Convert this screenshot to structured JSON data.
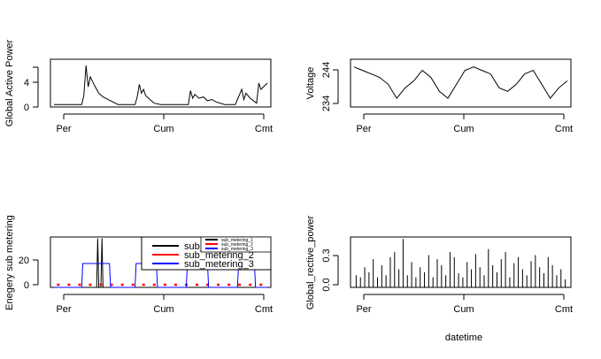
{
  "chart_data": [
    {
      "type": "line",
      "panel": "top-left",
      "title": "",
      "xlabel": "",
      "ylabel": "Global Active Power",
      "ylim": [
        0,
        7.6
      ],
      "yticks": [
        "0",
        "4"
      ],
      "xticks": [
        "Per",
        "Cum",
        "Cmt"
      ],
      "series": [
        {
          "color": "#000000",
          "x": [
            0,
            0.13,
            0.14,
            0.15,
            0.16,
            0.17,
            0.19,
            0.21,
            0.23,
            0.3,
            0.38,
            0.39,
            0.4,
            0.41,
            0.42,
            0.43,
            0.45,
            0.47,
            0.5,
            0.63,
            0.64,
            0.65,
            0.66,
            0.68,
            0.7,
            0.72,
            0.74,
            0.76,
            0.8,
            0.85,
            0.88,
            0.89,
            0.9,
            0.92,
            0.95,
            0.96,
            0.97,
            1.0
          ],
          "values": [
            0.4,
            0.4,
            1.8,
            6.6,
            3.2,
            4.8,
            3.4,
            2.2,
            1.6,
            0.4,
            0.4,
            1.6,
            3.6,
            2.2,
            2.8,
            1.8,
            1.2,
            0.6,
            0.4,
            0.4,
            2.6,
            1.4,
            2.0,
            1.4,
            1.6,
            1.0,
            1.2,
            0.8,
            0.4,
            0.4,
            2.8,
            1.2,
            2.2,
            1.4,
            0.6,
            3.8,
            2.8,
            3.8
          ]
        }
      ]
    },
    {
      "type": "line",
      "panel": "top-right",
      "title": "",
      "xlabel": "",
      "ylabel": "Voltage",
      "ylim": [
        233.5,
        247.2
      ],
      "yticks": [
        "234",
        "244"
      ],
      "xticks": [
        "Per",
        "Cum",
        "Cmt"
      ],
      "series": [
        {
          "color": "#000000",
          "x": [
            0,
            0.04,
            0.08,
            0.12,
            0.16,
            0.2,
            0.24,
            0.28,
            0.32,
            0.36,
            0.4,
            0.44,
            0.48,
            0.52,
            0.56,
            0.6,
            0.64,
            0.68,
            0.72,
            0.76,
            0.8,
            0.84,
            0.88,
            0.92,
            0.96,
            1.0
          ],
          "values": [
            245,
            244,
            243,
            242,
            240,
            236,
            239,
            241,
            244,
            242,
            238,
            236,
            240,
            244,
            245,
            244,
            243,
            239,
            238,
            240,
            243,
            244,
            240,
            236,
            239,
            241
          ]
        }
      ]
    },
    {
      "type": "line",
      "panel": "bottom-left",
      "title": "",
      "xlabel": "",
      "ylabel": "Enegery sub metering",
      "ylim": [
        0,
        38
      ],
      "yticks": [
        "0",
        "20"
      ],
      "xticks": [
        "Per",
        "Cum",
        "Cmt"
      ],
      "legend": {
        "placement": "top-right",
        "entries": [
          "sub_metering_1",
          "sub_metering_2",
          "sub_metering_3"
        ],
        "small_entries": [
          "sub_metering_1",
          "sub_metering_2",
          "sub_metering_3"
        ]
      },
      "series": [
        {
          "name": "sub_metering_1",
          "color": "#000000",
          "x": [
            0,
            0.2,
            0.205,
            0.21,
            0.22,
            0.225,
            0.23,
            1.0
          ],
          "values": [
            0,
            0,
            37,
            0,
            0,
            37,
            0,
            0
          ]
        },
        {
          "name": "sub_metering_2",
          "color": "#ff0000",
          "x": [
            0.02,
            0.07,
            0.12,
            0.17,
            0.22,
            0.27,
            0.32,
            0.37,
            0.42,
            0.47,
            0.52,
            0.57,
            0.62,
            0.67,
            0.72,
            0.77,
            0.82,
            0.87,
            0.92,
            0.97
          ],
          "values": [
            2,
            2,
            2,
            2,
            2,
            2,
            2,
            2,
            2,
            2,
            2,
            2,
            2,
            2,
            2,
            2,
            2,
            2,
            2,
            2
          ]
        },
        {
          "name": "sub_metering_3",
          "color": "#0000ff",
          "x": [
            0,
            0.13,
            0.135,
            0.26,
            0.265,
            0.38,
            0.385,
            0.48,
            0.485,
            0.62,
            0.625,
            0.72,
            0.725,
            0.86,
            0.865,
            0.94,
            0.945,
            1.0
          ],
          "values": [
            0,
            0,
            18,
            18,
            0,
            0,
            18,
            18,
            0,
            0,
            17,
            17,
            0,
            0,
            17,
            17,
            0,
            0
          ]
        }
      ]
    },
    {
      "type": "bar",
      "panel": "bottom-right",
      "title": "",
      "xlabel": "datetime",
      "ylabel": "Global_rective_power",
      "ylim": [
        0,
        0.5
      ],
      "yticks": [
        "0.0",
        "0.3"
      ],
      "xticks": [
        "Per",
        "Cum",
        "Cmt"
      ],
      "series": [
        {
          "color": "#000000",
          "x": [
            0.01,
            0.03,
            0.05,
            0.07,
            0.09,
            0.11,
            0.13,
            0.15,
            0.17,
            0.19,
            0.21,
            0.23,
            0.25,
            0.27,
            0.29,
            0.31,
            0.33,
            0.35,
            0.37,
            0.39,
            0.41,
            0.43,
            0.45,
            0.47,
            0.49,
            0.51,
            0.53,
            0.55,
            0.57,
            0.59,
            0.61,
            0.63,
            0.65,
            0.67,
            0.69,
            0.71,
            0.73,
            0.75,
            0.77,
            0.79,
            0.81,
            0.83,
            0.85,
            0.87,
            0.89,
            0.91,
            0.93,
            0.95,
            0.97,
            0.99
          ],
          "values": [
            0.12,
            0.1,
            0.2,
            0.15,
            0.28,
            0.1,
            0.22,
            0.12,
            0.3,
            0.35,
            0.18,
            0.48,
            0.12,
            0.25,
            0.1,
            0.2,
            0.15,
            0.32,
            0.1,
            0.28,
            0.22,
            0.12,
            0.35,
            0.3,
            0.14,
            0.1,
            0.25,
            0.18,
            0.33,
            0.2,
            0.12,
            0.38,
            0.22,
            0.15,
            0.28,
            0.35,
            0.1,
            0.24,
            0.3,
            0.18,
            0.12,
            0.26,
            0.32,
            0.2,
            0.14,
            0.3,
            0.22,
            0.12,
            0.18,
            0.08
          ]
        }
      ]
    }
  ]
}
